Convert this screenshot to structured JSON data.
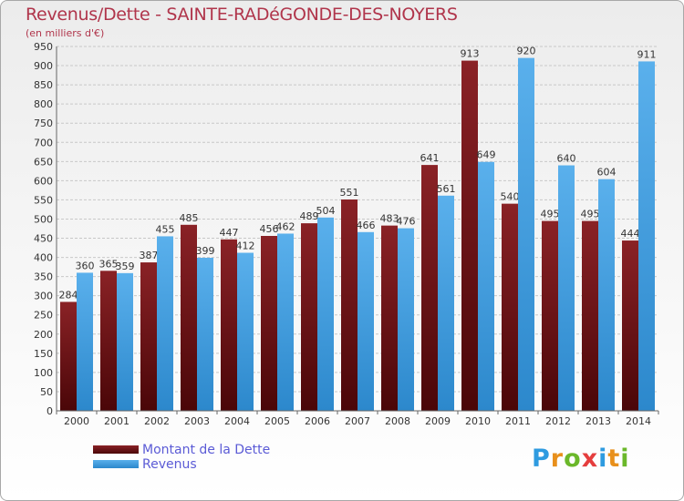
{
  "title": "Revenus/Dette - SAINTE-RADéGONDE-DES-NOYERS",
  "subtitle": "(en milliers d'€)",
  "legend": {
    "debt_label": "Montant de la Dette",
    "revenue_label": "Revenus"
  },
  "logo": {
    "letters": [
      "P",
      "r",
      "o",
      "x",
      "i",
      "t",
      "i"
    ],
    "colors": [
      "#2e9be0",
      "#e8901c",
      "#6bb82a",
      "#e53e3e",
      "#2e9be0",
      "#e8901c",
      "#6bb82a"
    ]
  },
  "chart_data": {
    "type": "bar",
    "categories": [
      "2000",
      "2001",
      "2002",
      "2003",
      "2004",
      "2005",
      "2006",
      "2007",
      "2008",
      "2009",
      "2010",
      "2011",
      "2012",
      "2013",
      "2014"
    ],
    "series": [
      {
        "name": "Montant de la Dette",
        "color": "#7a1518",
        "values": [
          284,
          365,
          387,
          485,
          447,
          456,
          489,
          551,
          483,
          641,
          913,
          540,
          495,
          495,
          444
        ]
      },
      {
        "name": "Revenus",
        "color": "#4da6e6",
        "values": [
          360,
          359,
          455,
          399,
          412,
          462,
          504,
          466,
          476,
          561,
          649,
          920,
          640,
          604,
          911
        ]
      }
    ],
    "ylim": [
      0,
      950
    ],
    "yticks": [
      0,
      50,
      100,
      150,
      200,
      250,
      300,
      350,
      400,
      450,
      500,
      550,
      600,
      650,
      700,
      750,
      800,
      850,
      900,
      950
    ],
    "grid": true,
    "legend_position": "bottom-left"
  }
}
